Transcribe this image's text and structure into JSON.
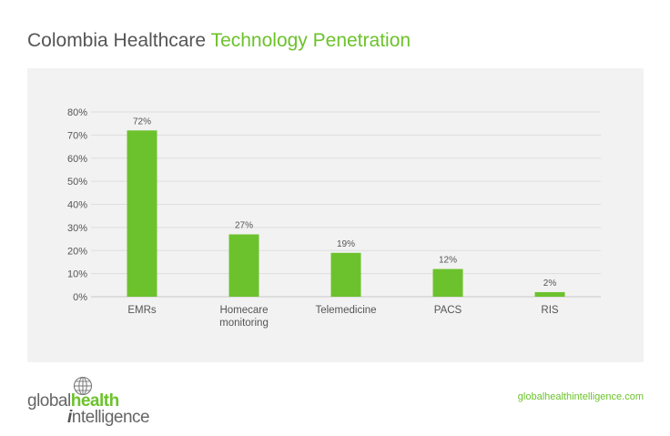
{
  "title": {
    "part1": "Colombia Healthcare ",
    "part2": "Technology Penetration"
  },
  "colors": {
    "accent": "#6cc22c",
    "bar": "#6cc22c",
    "panel": "#f2f2f2",
    "text": "#555555"
  },
  "chart_data": {
    "type": "bar",
    "categories": [
      "EMRs",
      "Homecare monitoring",
      "Telemedicine",
      "PACS",
      "RIS"
    ],
    "category_lines": [
      [
        "EMRs"
      ],
      [
        "Homecare",
        "monitoring"
      ],
      [
        "Telemedicine"
      ],
      [
        "PACS"
      ],
      [
        "RIS"
      ]
    ],
    "values": [
      72,
      27,
      19,
      12,
      2
    ],
    "data_labels": [
      "72%",
      "27%",
      "19%",
      "12%",
      "2%"
    ],
    "ylim": [
      0,
      80
    ],
    "yticks": [
      0,
      10,
      20,
      30,
      40,
      50,
      60,
      70,
      80
    ],
    "ytick_labels": [
      "0%",
      "10%",
      "20%",
      "30%",
      "40%",
      "50%",
      "60%",
      "70%",
      "80%"
    ],
    "grid": true,
    "legend": "none",
    "xlabel": "",
    "ylabel": ""
  },
  "logo": {
    "word1": "global",
    "word2": "health",
    "word3_first": "i",
    "word3_rest": "ntelligence",
    "icon": "globe-icon"
  },
  "website": "globalhealthintelligence.com"
}
